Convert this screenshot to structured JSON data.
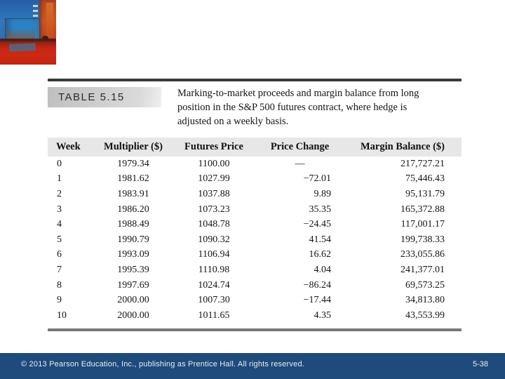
{
  "artwork": {
    "description": "abstract red and blue painting"
  },
  "table_figure": {
    "label": "TABLE 5.15",
    "caption_lines": [
      "Marking-to-market proceeds and margin balance from long",
      "position in the S&P 500 futures contract, where hedge is",
      "adjusted on a weekly basis."
    ],
    "columns": [
      "Week",
      "Multiplier ($)",
      "Futures Price",
      "Price Change",
      "Margin Balance ($)"
    ],
    "rows": [
      {
        "week": "0",
        "multiplier": "1979.34",
        "futures_price": "1100.00",
        "price_change": "—",
        "margin_balance": "217,727.21"
      },
      {
        "week": "1",
        "multiplier": "1981.62",
        "futures_price": "1027.99",
        "price_change": "−72.01",
        "margin_balance": "75,446.43"
      },
      {
        "week": "2",
        "multiplier": "1983.91",
        "futures_price": "1037.88",
        "price_change": "9.89",
        "margin_balance": "95,131.79"
      },
      {
        "week": "3",
        "multiplier": "1986.20",
        "futures_price": "1073.23",
        "price_change": "35.35",
        "margin_balance": "165,372.88"
      },
      {
        "week": "4",
        "multiplier": "1988.49",
        "futures_price": "1048.78",
        "price_change": "−24.45",
        "margin_balance": "117,001.17"
      },
      {
        "week": "5",
        "multiplier": "1990.79",
        "futures_price": "1090.32",
        "price_change": "41.54",
        "margin_balance": "199,738.33"
      },
      {
        "week": "6",
        "multiplier": "1993.09",
        "futures_price": "1106.94",
        "price_change": "16.62",
        "margin_balance": "233,055.86"
      },
      {
        "week": "7",
        "multiplier": "1995.39",
        "futures_price": "1110.98",
        "price_change": "4.04",
        "margin_balance": "241,377.01"
      },
      {
        "week": "8",
        "multiplier": "1997.69",
        "futures_price": "1024.74",
        "price_change": "−86.24",
        "margin_balance": "69,573.25"
      },
      {
        "week": "9",
        "multiplier": "2000.00",
        "futures_price": "1007.30",
        "price_change": "−17.44",
        "margin_balance": "34,813.80"
      },
      {
        "week": "10",
        "multiplier": "2000.00",
        "futures_price": "1011.65",
        "price_change": "4.35",
        "margin_balance": "43,553.99"
      }
    ]
  },
  "footer": {
    "copyright": "© 2013 Pearson Education, Inc., publishing as Prentice Hall.  All rights reserved.",
    "page_number": "5-38",
    "bar_color": "#1F4A7C"
  }
}
